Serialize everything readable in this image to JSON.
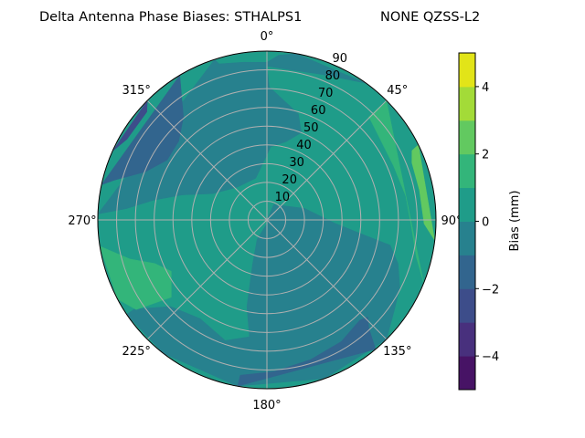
{
  "chart_data": {
    "type": "contour",
    "projection": "polar",
    "title_left": "Delta Antenna Phase Biases: STHALPS1",
    "title_right": "NONE QZSS-L2",
    "theta_direction": "clockwise",
    "theta_zero": "north",
    "angle_ticks": [
      "0°",
      "45°",
      "90°",
      "135°",
      "180°",
      "225°",
      "270°",
      "315°"
    ],
    "radial_ticks": [
      "10",
      "20",
      "30",
      "40",
      "50",
      "60",
      "70",
      "80",
      "90"
    ],
    "radial_range": [
      0,
      90
    ],
    "grid": true,
    "levels": [
      -5,
      -4,
      -3,
      -2,
      -1,
      0,
      1,
      2,
      3,
      4,
      5
    ],
    "level_colors": [
      "#471365",
      "#48307d",
      "#3d4d8a",
      "#32658e",
      "#27818e",
      "#1f9c89",
      "#33b57a",
      "#62c960",
      "#a3db38",
      "#e2e418"
    ],
    "background_level": [
      0,
      1
    ],
    "regions": [
      {
        "range": [
          -1,
          0
        ],
        "points_az_zenith": [
          [
            0,
            0
          ],
          [
            24,
            9
          ],
          [
            73,
            21
          ],
          [
            93,
            36.5
          ],
          [
            99,
            53
          ],
          [
            101.6,
            67
          ],
          [
            108.5,
            73.6
          ],
          [
            117,
            79.4
          ],
          [
            126,
            83.5
          ],
          [
            135,
            90
          ],
          [
            160,
            90
          ],
          [
            190,
            90
          ],
          [
            217.7,
            90
          ],
          [
            236,
            90
          ],
          [
            236,
            85
          ],
          [
            228,
            69
          ],
          [
            214,
            63.5
          ],
          [
            199,
            68
          ],
          [
            188.5,
            63
          ],
          [
            193,
            47.4
          ],
          [
            198,
            24.6
          ],
          [
            207,
            11.5
          ],
          [
            180,
            2
          ]
        ]
      },
      {
        "range": [
          -1,
          0
        ],
        "points_az_zenith": [
          [
            0,
            82
          ],
          [
            7,
            81
          ],
          [
            21,
            83
          ],
          [
            36,
            90
          ],
          [
            10,
            90
          ],
          [
            4,
            88
          ],
          [
            0,
            84
          ],
          [
            351.5,
            85
          ],
          [
            343,
            87
          ],
          [
            342,
            90
          ],
          [
            272,
            90
          ],
          [
            274.6,
            75
          ],
          [
            280,
            61
          ],
          [
            286.5,
            47
          ],
          [
            296,
            32
          ],
          [
            318,
            23.5
          ],
          [
            345,
            23
          ],
          [
            354.5,
            29
          ],
          [
            3,
            39
          ],
          [
            13.8,
            43
          ],
          [
            21.5,
            50
          ],
          [
            16.5,
            59
          ],
          [
            1,
            71
          ]
        ]
      },
      {
        "range": [
          -2,
          -1
        ],
        "points_az_zenith": [
          [
            329,
            90
          ],
          [
            323.7,
            76
          ],
          [
            321,
            70.6
          ],
          [
            311.8,
            63
          ],
          [
            301,
            62
          ],
          [
            291.6,
            69.6
          ],
          [
            284.6,
            84
          ],
          [
            282,
            90
          ]
        ]
      },
      {
        "range": [
          -3,
          -2
        ],
        "points_az_zenith": [
          [
            315,
            90
          ],
          [
            312,
            86
          ],
          [
            300,
            86
          ],
          [
            294,
            90
          ]
        ]
      },
      {
        "range": [
          -2,
          -1
        ],
        "points_az_zenith": [
          [
            189.7,
            84
          ],
          [
            177.3,
            81
          ],
          [
            162.7,
            78
          ],
          [
            148.6,
            76
          ],
          [
            137.3,
            72.8
          ],
          [
            134,
            74.5
          ],
          [
            136.7,
            79
          ],
          [
            140,
            90
          ],
          [
            190,
            90
          ]
        ]
      },
      {
        "range": [
          1,
          2
        ],
        "points_az_zenith": [
          [
            45,
            90
          ],
          [
            44.6,
            77
          ],
          [
            46,
            76.7
          ],
          [
            52.7,
            74.5
          ],
          [
            66.8,
            73.3
          ],
          [
            80.3,
            75
          ],
          [
            92.8,
            77
          ],
          [
            104,
            82
          ],
          [
            112,
            90
          ]
        ]
      },
      {
        "range": [
          2,
          3
        ],
        "points_az_zenith": [
          [
            63.6,
            90
          ],
          [
            64.4,
            85.6
          ],
          [
            68.4,
            83
          ],
          [
            79,
            82.7
          ],
          [
            91.4,
            83.7
          ],
          [
            97,
            90
          ]
        ]
      },
      {
        "range": [
          1,
          2
        ],
        "points_az_zenith": [
          [
            261,
            90
          ],
          [
            254,
            75.8
          ],
          [
            248.7,
            64
          ],
          [
            241.7,
            57.8
          ],
          [
            231,
            65.5
          ],
          [
            235.5,
            84.4
          ],
          [
            242,
            90
          ]
        ]
      }
    ],
    "colorbar": {
      "label": "Bias (mm)",
      "ticks": [
        "−4",
        "−2",
        "0",
        "2",
        "4"
      ],
      "tick_values": [
        -4,
        -2,
        0,
        2,
        4
      ],
      "range": [
        -5,
        5
      ]
    }
  }
}
